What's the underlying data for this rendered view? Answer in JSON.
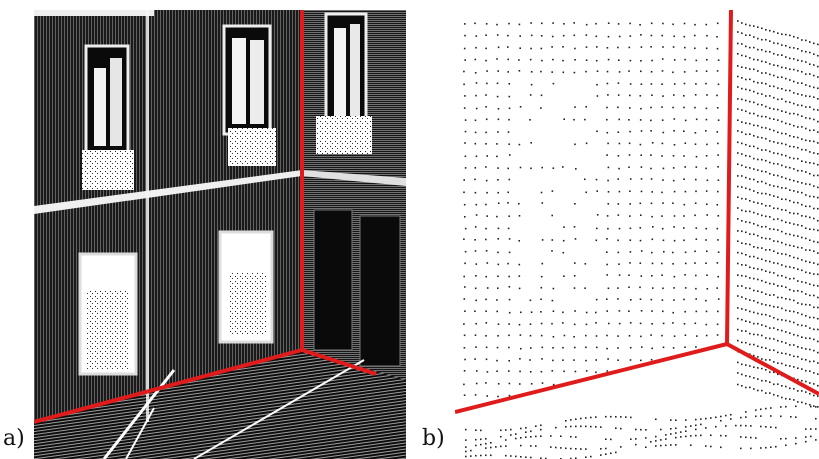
{
  "panels": [
    {
      "label": "a)",
      "content": "dense-point-cloud-facade-corner",
      "accent_color": "#e01b1b"
    },
    {
      "label": "b)",
      "content": "sparse-point-cloud-corner",
      "accent_color": "#e01b1b"
    }
  ],
  "colors": {
    "corner_line": "#e01b1b",
    "points_dark": "#111111",
    "points_light": "#f2f2f2"
  }
}
